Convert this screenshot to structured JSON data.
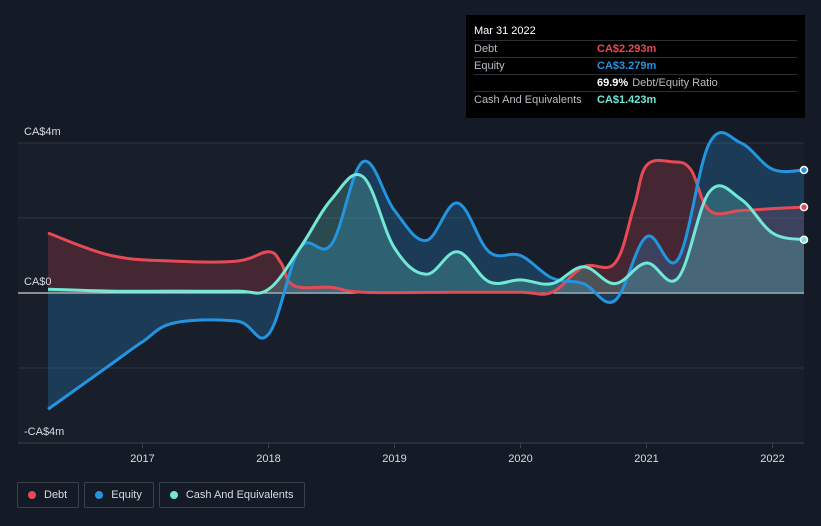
{
  "tooltip": {
    "date": "Mar 31 2022",
    "rows": [
      {
        "label": "Debt",
        "value": "CA$2.293m",
        "color": "#e64a55"
      },
      {
        "label": "Equity",
        "value": "CA$3.279m",
        "color": "#2394df"
      },
      {
        "label": "",
        "value": "69.9%",
        "suffix": "Debt/Equity Ratio"
      },
      {
        "label": "Cash And Equivalents",
        "value": "CA$1.423m",
        "color": "#71e7d6"
      }
    ]
  },
  "legend": [
    {
      "label": "Debt",
      "color": "#e64a55"
    },
    {
      "label": "Equity",
      "color": "#2394df"
    },
    {
      "label": "Cash And Equivalents",
      "color": "#71e7d6"
    }
  ],
  "chart_data": {
    "type": "area",
    "y_tick_labels": [
      "CA$4m",
      "CA$0",
      "-CA$4m"
    ],
    "y_ticks": [
      4,
      0,
      -4
    ],
    "x_tick_labels": [
      "2017",
      "2018",
      "2019",
      "2020",
      "2021",
      "2022"
    ],
    "x_ticks": [
      2017,
      2018,
      2019,
      2020,
      2021,
      2022
    ],
    "xlim": [
      2016.25,
      2022.25
    ],
    "ylim": [
      -4,
      4
    ],
    "series": [
      {
        "name": "Debt",
        "color": "#e64a55",
        "points": [
          [
            2016.25,
            1.6
          ],
          [
            2016.75,
            1.0
          ],
          [
            2017.25,
            0.85
          ],
          [
            2017.75,
            0.85
          ],
          [
            2018.0,
            1.1
          ],
          [
            2018.1,
            0.8
          ],
          [
            2018.2,
            0.2
          ],
          [
            2018.5,
            0.15
          ],
          [
            2018.75,
            0.02
          ],
          [
            2019.5,
            0.02
          ],
          [
            2020.0,
            0.02
          ],
          [
            2020.25,
            0.02
          ],
          [
            2020.5,
            0.7
          ],
          [
            2020.75,
            0.8
          ],
          [
            2020.9,
            2.3
          ],
          [
            2021.0,
            3.4
          ],
          [
            2021.2,
            3.5
          ],
          [
            2021.35,
            3.3
          ],
          [
            2021.5,
            2.2
          ],
          [
            2021.75,
            2.2
          ],
          [
            2022.0,
            2.25
          ],
          [
            2022.25,
            2.29
          ]
        ]
      },
      {
        "name": "Equity",
        "color": "#2394df",
        "points": [
          [
            2016.25,
            -3.1
          ],
          [
            2016.75,
            -1.9
          ],
          [
            2017.0,
            -1.3
          ],
          [
            2017.25,
            -0.8
          ],
          [
            2017.75,
            -0.75
          ],
          [
            2018.0,
            -1.1
          ],
          [
            2018.25,
            1.2
          ],
          [
            2018.5,
            1.3
          ],
          [
            2018.75,
            3.5
          ],
          [
            2019.0,
            2.2
          ],
          [
            2019.25,
            1.4
          ],
          [
            2019.5,
            2.4
          ],
          [
            2019.75,
            1.1
          ],
          [
            2020.0,
            1.0
          ],
          [
            2020.25,
            0.4
          ],
          [
            2020.5,
            0.25
          ],
          [
            2020.75,
            -0.2
          ],
          [
            2021.0,
            1.5
          ],
          [
            2021.25,
            0.9
          ],
          [
            2021.5,
            4.0
          ],
          [
            2021.75,
            4.0
          ],
          [
            2022.0,
            3.3
          ],
          [
            2022.25,
            3.28
          ]
        ]
      },
      {
        "name": "Cash And Equivalents",
        "color": "#71e7d6",
        "points": [
          [
            2016.25,
            0.1
          ],
          [
            2016.75,
            0.05
          ],
          [
            2017.25,
            0.05
          ],
          [
            2017.75,
            0.05
          ],
          [
            2018.0,
            0.1
          ],
          [
            2018.25,
            1.2
          ],
          [
            2018.5,
            2.5
          ],
          [
            2018.75,
            3.1
          ],
          [
            2019.0,
            1.2
          ],
          [
            2019.25,
            0.5
          ],
          [
            2019.5,
            1.1
          ],
          [
            2019.75,
            0.3
          ],
          [
            2020.0,
            0.35
          ],
          [
            2020.25,
            0.25
          ],
          [
            2020.5,
            0.7
          ],
          [
            2020.75,
            0.25
          ],
          [
            2021.0,
            0.8
          ],
          [
            2021.25,
            0.4
          ],
          [
            2021.5,
            2.7
          ],
          [
            2021.75,
            2.5
          ],
          [
            2022.0,
            1.6
          ],
          [
            2022.25,
            1.42
          ]
        ]
      }
    ]
  }
}
